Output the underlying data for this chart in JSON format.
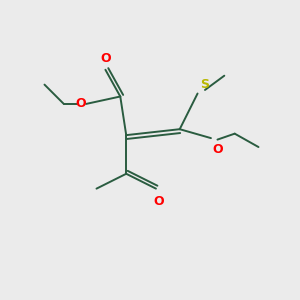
{
  "bg_color": "#ebebeb",
  "bond_color": "#2a5c40",
  "o_color": "#ff0000",
  "s_color": "#b8b800",
  "line_width": 1.4,
  "figsize": [
    3.0,
    3.0
  ],
  "dpi": 100,
  "xlim": [
    0,
    10
  ],
  "ylim": [
    0,
    10
  ]
}
